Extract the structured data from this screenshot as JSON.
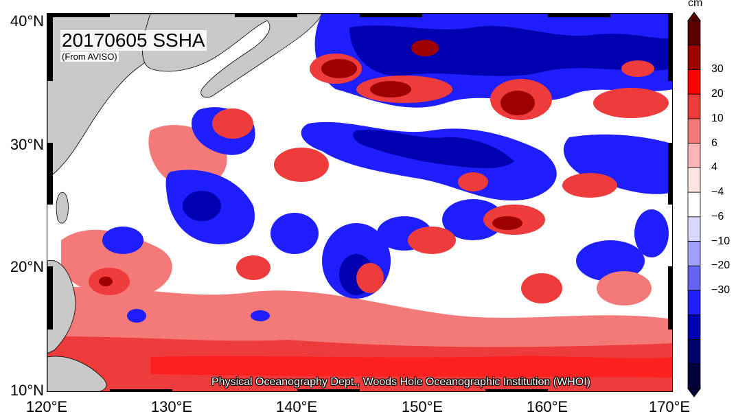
{
  "title": "20170605 SSHA",
  "subtitle": "(From AVISO)",
  "credit": "Physical Oceanography Dept., Woods Hole Oceanographic Institution (WHOI)",
  "axes": {
    "lat_labels": [
      "40°N",
      "30°N",
      "20°N",
      "10°N"
    ],
    "lon_labels": [
      "120°E",
      "130°E",
      "140°E",
      "150°E",
      "160°E",
      "170°E"
    ],
    "lat_range": [
      10,
      40
    ],
    "lon_range": [
      120,
      170
    ]
  },
  "colorbar": {
    "unit": "cm",
    "labels": [
      "30",
      "20",
      "10",
      "6",
      "4",
      "−4",
      "−6",
      "−10",
      "−20",
      "−30"
    ],
    "colors_top_to_bottom": [
      "#5a0000",
      "#9e0000",
      "#ff0000",
      "#ee3b3b",
      "#f47a7a",
      "#fab6b6",
      "#ffe4e4",
      "#ffffff",
      "#d8d8ff",
      "#a0a0f8",
      "#6464f0",
      "#1e1eff",
      "#0000b0",
      "#00006a",
      "#00003a"
    ]
  },
  "colors": {
    "land": "#c8c8c8",
    "background_ocean": "#f08080"
  },
  "map_data": {
    "variable": "SSHA",
    "date": "20170605",
    "source": "AVISO"
  }
}
